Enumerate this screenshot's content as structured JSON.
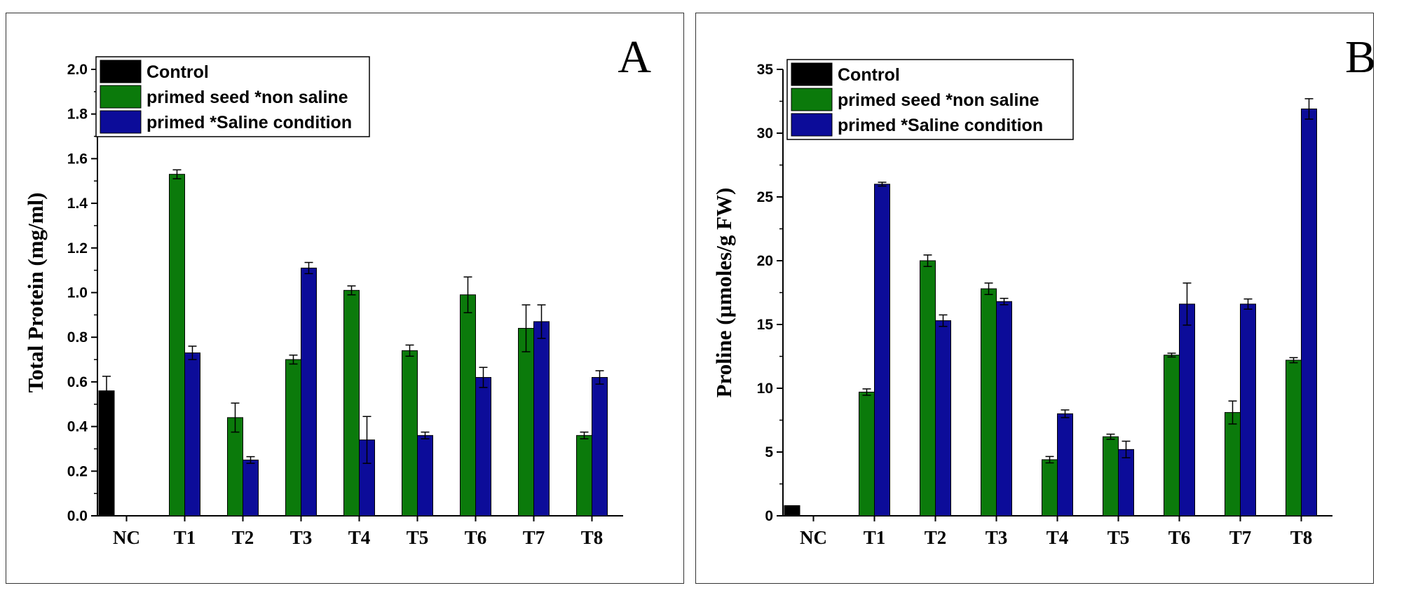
{
  "chart_data": [
    {
      "type": "bar",
      "panel_label": "A",
      "categories": [
        "NC",
        "T1",
        "T2",
        "T3",
        "T4",
        "T5",
        "T6",
        "T7",
        "T8"
      ],
      "ylabel": "Total Protein (mg/ml)",
      "xlabel": "",
      "ylim": [
        0,
        2.0
      ],
      "yticks": [
        0.0,
        0.2,
        0.4,
        0.6,
        0.8,
        1.0,
        1.2,
        1.4,
        1.6,
        1.8,
        2.0
      ],
      "ytick_labels": [
        "0.0",
        "0.2",
        "0.4",
        "0.6",
        "0.8",
        "1.0",
        "1.2",
        "1.4",
        "1.6",
        "1.8",
        "2.0"
      ],
      "legend_position": "top-left",
      "series": [
        {
          "name": "Control",
          "color": "#000000",
          "values": [
            0.56,
            null,
            null,
            null,
            null,
            null,
            null,
            null,
            null
          ],
          "errors": [
            0.065,
            null,
            null,
            null,
            null,
            null,
            null,
            null,
            null
          ]
        },
        {
          "name": "primed seed *non saline",
          "color": "#0b7a0b",
          "values": [
            null,
            1.53,
            0.44,
            0.7,
            1.01,
            0.74,
            0.99,
            0.84,
            0.36
          ],
          "errors": [
            null,
            0.02,
            0.065,
            0.02,
            0.02,
            0.025,
            0.08,
            0.105,
            0.015
          ]
        },
        {
          "name": "primed *Saline condition",
          "color": "#0c0c99",
          "values": [
            null,
            0.73,
            0.25,
            1.11,
            0.34,
            0.36,
            0.62,
            0.87,
            0.62
          ],
          "errors": [
            null,
            0.03,
            0.015,
            0.025,
            0.105,
            0.015,
            0.045,
            0.075,
            0.03
          ]
        }
      ]
    },
    {
      "type": "bar",
      "panel_label": "B",
      "categories": [
        "NC",
        "T1",
        "T2",
        "T3",
        "T4",
        "T5",
        "T6",
        "T7",
        "T8"
      ],
      "ylabel": "Proline (µmoles/g FW)",
      "xlabel": "",
      "ylim": [
        0,
        35
      ],
      "yticks": [
        0,
        5,
        10,
        15,
        20,
        25,
        30,
        35
      ],
      "ytick_labels": [
        "0",
        "5",
        "10",
        "15",
        "20",
        "25",
        "30",
        "35"
      ],
      "legend_position": "top-left",
      "series": [
        {
          "name": "Control",
          "color": "#000000",
          "values": [
            0.8,
            null,
            null,
            null,
            null,
            null,
            null,
            null,
            null
          ],
          "errors": [
            0,
            null,
            null,
            null,
            null,
            null,
            null,
            null,
            null
          ]
        },
        {
          "name": "primed seed *non saline",
          "color": "#0b7a0b",
          "values": [
            null,
            9.7,
            20.0,
            17.8,
            4.4,
            6.2,
            12.6,
            8.1,
            12.2
          ],
          "errors": [
            null,
            0.25,
            0.45,
            0.45,
            0.25,
            0.2,
            0.15,
            0.9,
            0.2
          ]
        },
        {
          "name": "primed *Saline condition",
          "color": "#0c0c99",
          "values": [
            null,
            26.0,
            15.3,
            16.8,
            8.0,
            5.2,
            16.6,
            16.6,
            31.9
          ],
          "errors": [
            null,
            0.15,
            0.45,
            0.25,
            0.3,
            0.65,
            1.65,
            0.4,
            0.8
          ]
        }
      ]
    }
  ]
}
